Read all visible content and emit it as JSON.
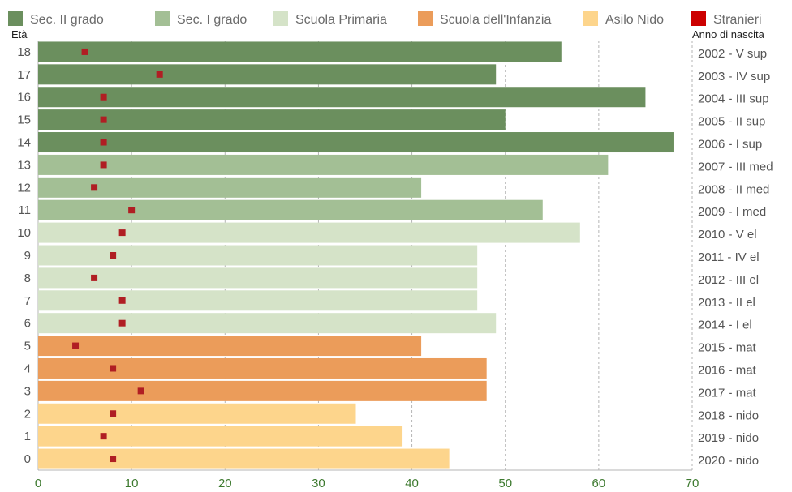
{
  "chart_data": {
    "type": "bar",
    "orientation": "horizontal",
    "y_label_left": "Età",
    "y_label_right": "Anno di nascita",
    "xlim": [
      0,
      70
    ],
    "x_ticks": [
      "0",
      "10",
      "20",
      "30",
      "40",
      "50",
      "60",
      "70"
    ],
    "grid": true,
    "legend_position": "top",
    "legend": [
      {
        "name": "Sec. II grado",
        "color": "#6b8f5e"
      },
      {
        "name": "Sec. I grado",
        "color": "#a3bf95"
      },
      {
        "name": "Scuola Primaria",
        "color": "#d5e3c8"
      },
      {
        "name": "Scuola dell'Infanzia",
        "color": "#eb9c5a"
      },
      {
        "name": "Asilo Nido",
        "color": "#fdd58c"
      },
      {
        "name": "Stranieri",
        "color": "#cc0000"
      }
    ],
    "marker_color": "#b01e23",
    "rows": [
      {
        "age": "18",
        "year": "2002 - V sup",
        "group": 0,
        "value": 56,
        "stranieri": 5
      },
      {
        "age": "17",
        "year": "2003 - IV sup",
        "group": 0,
        "value": 49,
        "stranieri": 13
      },
      {
        "age": "16",
        "year": "2004 - III sup",
        "group": 0,
        "value": 65,
        "stranieri": 7
      },
      {
        "age": "15",
        "year": "2005 - II sup",
        "group": 0,
        "value": 50,
        "stranieri": 7
      },
      {
        "age": "14",
        "year": "2006 - I sup",
        "group": 0,
        "value": 68,
        "stranieri": 7
      },
      {
        "age": "13",
        "year": "2007 - III med",
        "group": 1,
        "value": 61,
        "stranieri": 7
      },
      {
        "age": "12",
        "year": "2008 - II med",
        "group": 1,
        "value": 41,
        "stranieri": 6
      },
      {
        "age": "11",
        "year": "2009 - I med",
        "group": 1,
        "value": 54,
        "stranieri": 10
      },
      {
        "age": "10",
        "year": "2010 - V el",
        "group": 2,
        "value": 58,
        "stranieri": 9
      },
      {
        "age": "9",
        "year": "2011 - IV el",
        "group": 2,
        "value": 47,
        "stranieri": 8
      },
      {
        "age": "8",
        "year": "2012 - III el",
        "group": 2,
        "value": 47,
        "stranieri": 6
      },
      {
        "age": "7",
        "year": "2013 - II el",
        "group": 2,
        "value": 47,
        "stranieri": 9
      },
      {
        "age": "6",
        "year": "2014 - I el",
        "group": 2,
        "value": 49,
        "stranieri": 9
      },
      {
        "age": "5",
        "year": "2015 - mat",
        "group": 3,
        "value": 41,
        "stranieri": 4
      },
      {
        "age": "4",
        "year": "2016 - mat",
        "group": 3,
        "value": 48,
        "stranieri": 8
      },
      {
        "age": "3",
        "year": "2017 - mat",
        "group": 3,
        "value": 48,
        "stranieri": 11
      },
      {
        "age": "2",
        "year": "2018 - nido",
        "group": 4,
        "value": 34,
        "stranieri": 8
      },
      {
        "age": "1",
        "year": "2019 - nido",
        "group": 4,
        "value": 39,
        "stranieri": 7
      },
      {
        "age": "0",
        "year": "2020 - nido",
        "group": 4,
        "value": 44,
        "stranieri": 8
      }
    ]
  }
}
